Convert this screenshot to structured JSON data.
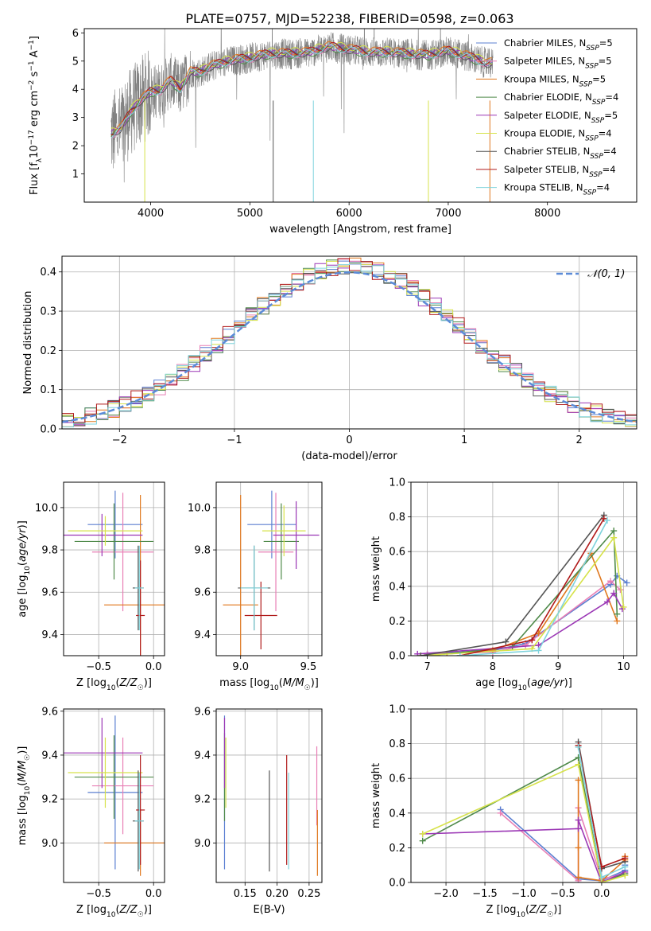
{
  "figure_title": "PLATE=0757, MJD=52238, FIBERID=0598, z=0.063",
  "models": [
    {
      "name": "Chabrier MILES",
      "nssp": "5",
      "color": "#5b7fd1"
    },
    {
      "name": "Salpeter MILES",
      "nssp": "5",
      "color": "#e87fb5"
    },
    {
      "name": "Kroupa MILES",
      "nssp": "5",
      "color": "#e0781e"
    },
    {
      "name": "Chabrier ELODIE",
      "nssp": "4",
      "color": "#4f8a4a"
    },
    {
      "name": "Salpeter ELODIE",
      "nssp": "5",
      "color": "#9b37b5"
    },
    {
      "name": "Kroupa ELODIE",
      "nssp": "4",
      "color": "#d6e24a"
    },
    {
      "name": "Chabrier STELIB",
      "nssp": "4",
      "color": "#555555"
    },
    {
      "name": "Salpeter STELIB",
      "nssp": "4",
      "color": "#b01a1a"
    },
    {
      "name": "Kroupa STELIB",
      "nssp": "4",
      "color": "#7fd3dc"
    }
  ],
  "chart_data": [
    {
      "id": "spectrum",
      "type": "line",
      "xlabel": "wavelength [Angstrom, rest frame]",
      "ylabel": "Flux [f_λ10^-17 erg cm^-2 s^-1 A^-1]",
      "xlim": [
        3330,
        8900
      ],
      "ylim": [
        0,
        6.15
      ],
      "xticks": [
        4000,
        5000,
        6000,
        7000,
        8000
      ],
      "yticks": [
        1,
        2,
        3,
        4,
        5,
        6
      ],
      "data_color": "#808080",
      "continuum": {
        "x": [
          3600,
          3700,
          3800,
          3900,
          4000,
          4100,
          4200,
          4300,
          4400,
          4500,
          4600,
          4800,
          5000,
          5200,
          5400,
          5600,
          5800,
          6000,
          6200,
          6400,
          6600,
          6800,
          7000,
          7200,
          7400,
          7600,
          7800,
          8000,
          8200,
          8500,
          8800
        ],
        "y": [
          2.4,
          2.6,
          3.2,
          3.6,
          3.9,
          3.95,
          4.3,
          4.0,
          4.6,
          4.6,
          4.8,
          5.0,
          5.1,
          5.25,
          5.25,
          5.3,
          5.5,
          5.4,
          5.3,
          5.3,
          5.25,
          5.2,
          5.35,
          5.15,
          4.9,
          5.0,
          5.3,
          5.3,
          5.3,
          5.3,
          5.3
        ]
      }
    },
    {
      "id": "residuals",
      "type": "histogram",
      "xlabel": "(data-model)/error",
      "ylabel": "Normed distribution",
      "xlim": [
        -2.5,
        2.5
      ],
      "ylim": [
        0,
        0.44
      ],
      "xticks": [
        -2,
        -1,
        0,
        1,
        2
      ],
      "yticks": [
        0.0,
        0.1,
        0.2,
        0.3,
        0.4
      ],
      "grid": true,
      "legend": "$\\mathcal{N}(0,1)$",
      "legend_text": "𝒩(0, 1)",
      "normal_color": "#5b8bd8",
      "bin_width": 0.1
    },
    {
      "id": "age-vs-Z",
      "type": "errorbar",
      "xlabel": "Z [log10(Z/Z☉)]",
      "ylabel": "age [log10(age/yr)]",
      "xlim": [
        -0.82,
        0.1
      ],
      "ylim": [
        9.3,
        10.12
      ],
      "xticks": [
        -0.5,
        0.0
      ],
      "yticks": [
        9.4,
        9.6,
        9.8,
        10.0
      ],
      "grid": true,
      "points": [
        {
          "x": -0.35,
          "xerr": 0.25,
          "y": 9.92,
          "yerr": 0.16,
          "model": 0
        },
        {
          "x": -0.28,
          "xerr": 0.28,
          "y": 9.79,
          "yerr": 0.28,
          "model": 1
        },
        {
          "x": -0.12,
          "xerr": 0.33,
          "y": 9.54,
          "yerr": 0.52,
          "model": 2
        },
        {
          "x": -0.36,
          "xerr": 0.36,
          "y": 9.84,
          "yerr": 0.18,
          "model": 3
        },
        {
          "x": -0.47,
          "xerr": 0.37,
          "y": 9.87,
          "yerr": 0.1,
          "model": 4
        },
        {
          "x": -0.44,
          "xerr": 0.34,
          "y": 9.89,
          "yerr": 0.07,
          "model": 5
        },
        {
          "x": -0.14,
          "xerr": 0.05,
          "y": 9.62,
          "yerr": 0.2,
          "model": 6
        },
        {
          "x": -0.12,
          "xerr": 0.04,
          "y": 9.49,
          "yerr": 0.26,
          "model": 7
        },
        {
          "x": -0.13,
          "xerr": 0.04,
          "y": 9.62,
          "yerr": 0.2,
          "model": 8
        }
      ]
    },
    {
      "id": "age-vs-mass",
      "type": "errorbar",
      "xlabel": "mass [log10(M/M☉)]",
      "ylabel": "",
      "xlim": [
        8.82,
        9.6
      ],
      "ylim": [
        9.3,
        10.12
      ],
      "xticks": [
        9.0,
        9.5
      ],
      "yticks": [
        9.4,
        9.6,
        9.8,
        10.0
      ],
      "grid": true,
      "points": [
        {
          "x": 9.23,
          "xerr": 0.18,
          "y": 9.92,
          "yerr": 0.16,
          "model": 0
        },
        {
          "x": 9.26,
          "xerr": 0.13,
          "y": 9.79,
          "yerr": 0.28,
          "model": 1
        },
        {
          "x": 9.0,
          "xerr": 0.13,
          "y": 9.54,
          "yerr": 0.52,
          "model": 2
        },
        {
          "x": 9.3,
          "xerr": 0.13,
          "y": 9.84,
          "yerr": 0.18,
          "model": 3
        },
        {
          "x": 9.41,
          "xerr": 0.17,
          "y": 9.87,
          "yerr": 0.16,
          "model": 4
        },
        {
          "x": 9.32,
          "xerr": 0.16,
          "y": 9.89,
          "yerr": 0.12,
          "model": 5
        },
        {
          "x": 9.1,
          "xerr": 0.12,
          "y": 9.62,
          "yerr": 0.2,
          "model": 6
        },
        {
          "x": 9.15,
          "xerr": 0.12,
          "y": 9.49,
          "yerr": 0.16,
          "model": 7
        },
        {
          "x": 9.1,
          "xerr": 0.1,
          "y": 9.62,
          "yerr": 0.2,
          "model": 8
        }
      ]
    },
    {
      "id": "weight-vs-age",
      "type": "line",
      "xlabel": "age [log10(age/yr)]",
      "ylabel": "mass weight",
      "xlim": [
        6.75,
        10.2
      ],
      "ylim": [
        0.0,
        1.0
      ],
      "xticks": [
        7,
        8,
        9,
        10
      ],
      "yticks": [
        0.0,
        0.2,
        0.4,
        0.6,
        0.8,
        1.0
      ],
      "grid": true,
      "series": [
        {
          "model": 0,
          "x": [
            7.0,
            8.0,
            8.5,
            9.8,
            9.9,
            10.05
          ],
          "y": [
            0.01,
            0.03,
            0.07,
            0.41,
            0.46,
            0.42
          ]
        },
        {
          "model": 1,
          "x": [
            7.0,
            8.0,
            8.5,
            9.8,
            9.95
          ],
          "y": [
            0.01,
            0.02,
            0.06,
            0.43,
            0.38
          ]
        },
        {
          "model": 2,
          "x": [
            7.3,
            8.0,
            8.7,
            9.5,
            9.9
          ],
          "y": [
            0.01,
            0.03,
            0.13,
            0.59,
            0.2
          ]
        },
        {
          "model": 3,
          "x": [
            7.0,
            8.3,
            9.85,
            9.9
          ],
          "y": [
            0.0,
            0.05,
            0.72,
            0.24
          ]
        },
        {
          "model": 4,
          "x": [
            6.85,
            8.7,
            9.75,
            9.85,
            9.98
          ],
          "y": [
            0.01,
            0.06,
            0.31,
            0.36,
            0.27
          ]
        },
        {
          "model": 5,
          "x": [
            6.9,
            8.6,
            9.85,
            10.0
          ],
          "y": [
            0.0,
            0.04,
            0.68,
            0.28
          ]
        },
        {
          "model": 6,
          "x": [
            6.9,
            8.2,
            9.7
          ],
          "y": [
            0.0,
            0.08,
            0.81
          ]
        },
        {
          "model": 7,
          "x": [
            7.5,
            8.6,
            9.7
          ],
          "y": [
            0.0,
            0.09,
            0.79
          ]
        },
        {
          "model": 8,
          "x": [
            7.5,
            8.7,
            9.75
          ],
          "y": [
            0.0,
            0.03,
            0.78
          ]
        }
      ]
    },
    {
      "id": "mass-vs-Z",
      "type": "errorbar",
      "xlabel": "Z [log10(Z/Z☉)]",
      "ylabel": "mass [log10(M/M☉)]",
      "xlim": [
        -0.82,
        0.1
      ],
      "ylim": [
        8.82,
        9.61
      ],
      "xticks": [
        -0.5,
        0.0
      ],
      "yticks": [
        9.0,
        9.2,
        9.4,
        9.6
      ],
      "grid": true,
      "points": [
        {
          "x": -0.35,
          "xerr": 0.25,
          "y": 9.23,
          "yerr": 0.35,
          "model": 0
        },
        {
          "x": -0.28,
          "xerr": 0.28,
          "y": 9.26,
          "yerr": 0.22,
          "model": 1
        },
        {
          "x": -0.12,
          "xerr": 0.33,
          "y": 9.0,
          "yerr": 0.15,
          "model": 2
        },
        {
          "x": -0.36,
          "xerr": 0.36,
          "y": 9.3,
          "yerr": 0.19,
          "model": 3
        },
        {
          "x": -0.47,
          "xerr": 0.37,
          "y": 9.41,
          "yerr": 0.16,
          "model": 4
        },
        {
          "x": -0.44,
          "xerr": 0.34,
          "y": 9.32,
          "yerr": 0.16,
          "model": 5
        },
        {
          "x": -0.14,
          "xerr": 0.05,
          "y": 9.1,
          "yerr": 0.23,
          "model": 6
        },
        {
          "x": -0.12,
          "xerr": 0.04,
          "y": 9.15,
          "yerr": 0.25,
          "model": 7
        },
        {
          "x": -0.13,
          "xerr": 0.04,
          "y": 9.1,
          "yerr": 0.22,
          "model": 8
        }
      ]
    },
    {
      "id": "mass-vs-EBV",
      "type": "errorbar",
      "xlabel": "E(B-V)",
      "ylabel": "",
      "xlim": [
        0.105,
        0.27
      ],
      "ylim": [
        8.82,
        9.61
      ],
      "xticks": [
        0.15,
        0.2,
        0.25
      ],
      "yticks": [
        9.0,
        9.2,
        9.4,
        9.6
      ],
      "grid": true,
      "points": [
        {
          "x": 0.118,
          "y": 9.23,
          "yerr": 0.35,
          "model": 0
        },
        {
          "x": 0.262,
          "y": 9.26,
          "yerr": 0.18,
          "model": 1
        },
        {
          "x": 0.263,
          "y": 9.0,
          "yerr": 0.15,
          "model": 2
        },
        {
          "x": 0.118,
          "y": 9.3,
          "yerr": 0.2,
          "model": 3
        },
        {
          "x": 0.118,
          "y": 9.41,
          "yerr": 0.16,
          "model": 4
        },
        {
          "x": 0.12,
          "y": 9.32,
          "yerr": 0.16,
          "model": 5
        },
        {
          "x": 0.188,
          "y": 9.1,
          "yerr": 0.23,
          "model": 6
        },
        {
          "x": 0.215,
          "y": 9.15,
          "yerr": 0.25,
          "model": 7
        },
        {
          "x": 0.218,
          "y": 9.1,
          "yerr": 0.22,
          "model": 8
        }
      ]
    },
    {
      "id": "weight-vs-Z",
      "type": "line",
      "xlabel": "Z [log10(Z/Z☉)]",
      "ylabel": "mass weight",
      "xlim": [
        -2.45,
        0.45
      ],
      "ylim": [
        0.0,
        1.0
      ],
      "xticks": [
        -2.0,
        -1.5,
        -1.0,
        -0.5,
        0.0
      ],
      "yticks": [
        0.0,
        0.2,
        0.4,
        0.6,
        0.8,
        1.0
      ],
      "grid": true,
      "series": [
        {
          "model": 0,
          "x": [
            -1.3,
            -0.3,
            0.0,
            0.3,
            0.3
          ],
          "y": [
            0.42,
            0.02,
            0.01,
            0.07,
            0.1
          ]
        },
        {
          "model": 1,
          "x": [
            -1.3,
            -0.3,
            -0.3,
            0.0,
            0.3
          ],
          "y": [
            0.4,
            0.01,
            0.43,
            0.02,
            0.05
          ]
        },
        {
          "model": 2,
          "x": [
            -0.3,
            -0.3,
            -0.3,
            0.0,
            0.3,
            0.3
          ],
          "y": [
            0.59,
            0.2,
            0.03,
            0.01,
            0.13,
            0.15
          ]
        },
        {
          "model": 3,
          "x": [
            -2.3,
            -0.3,
            0.0,
            0.3
          ],
          "y": [
            0.24,
            0.72,
            0.0,
            0.05
          ]
        },
        {
          "model": 4,
          "x": [
            -2.3,
            -0.3,
            -0.3,
            0.0,
            0.3
          ],
          "y": [
            0.28,
            0.31,
            0.36,
            0.0,
            0.06
          ]
        },
        {
          "model": 5,
          "x": [
            -2.3,
            -0.3,
            0.0,
            0.3
          ],
          "y": [
            0.28,
            0.68,
            0.0,
            0.04
          ]
        },
        {
          "model": 6,
          "x": [
            -0.3,
            0.0,
            0.3
          ],
          "y": [
            0.81,
            0.08,
            0.12
          ]
        },
        {
          "model": 7,
          "x": [
            -0.3,
            0.0,
            0.3
          ],
          "y": [
            0.79,
            0.09,
            0.14
          ]
        },
        {
          "model": 8,
          "x": [
            -0.3,
            0.0,
            0.3
          ],
          "y": [
            0.78,
            0.03,
            0.09
          ]
        }
      ]
    }
  ]
}
